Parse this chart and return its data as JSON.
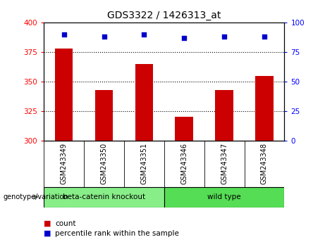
{
  "title": "GDS3322 / 1426313_at",
  "categories": [
    "GSM243349",
    "GSM243350",
    "GSM243351",
    "GSM243346",
    "GSM243347",
    "GSM243348"
  ],
  "bar_values": [
    378,
    343,
    365,
    320,
    343,
    355
  ],
  "percentile_values": [
    90,
    88,
    90,
    87,
    88,
    88
  ],
  "ylim_left": [
    300,
    400
  ],
  "ylim_right": [
    0,
    100
  ],
  "yticks_left": [
    300,
    325,
    350,
    375,
    400
  ],
  "yticks_right": [
    0,
    25,
    50,
    75,
    100
  ],
  "bar_color": "#cc0000",
  "dot_color": "#0000cc",
  "group1_label": "beta-catenin knockout",
  "group2_label": "wild type",
  "group1_color": "#88ee88",
  "group2_color": "#55dd55",
  "group_label_prefix": "genotype/variation",
  "legend_count_label": "count",
  "legend_percentile_label": "percentile rank within the sample",
  "bar_width": 0.45,
  "background_color": "#ffffff",
  "tick_area_color": "#c8c8c8"
}
